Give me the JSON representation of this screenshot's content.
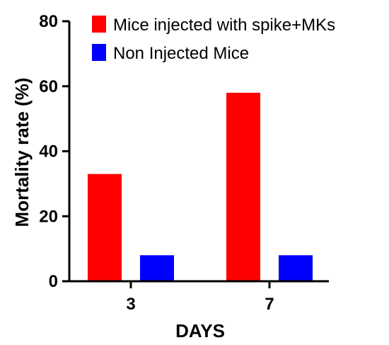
{
  "chart_data": {
    "type": "bar",
    "categories": [
      "3",
      "7"
    ],
    "series": [
      {
        "name": "Mice injected with spike+MKs",
        "values": [
          33,
          58
        ],
        "color": "#ff0000"
      },
      {
        "name": "Non Injected Mice",
        "values": [
          8,
          8
        ],
        "color": "#0000ff"
      }
    ],
    "xlabel": "DAYS",
    "ylabel": "Mortality rate (%)",
    "ylim": [
      0,
      80
    ],
    "yticks": [
      0,
      20,
      40,
      60,
      80
    ],
    "grid": false,
    "legend_position": "top-right"
  }
}
